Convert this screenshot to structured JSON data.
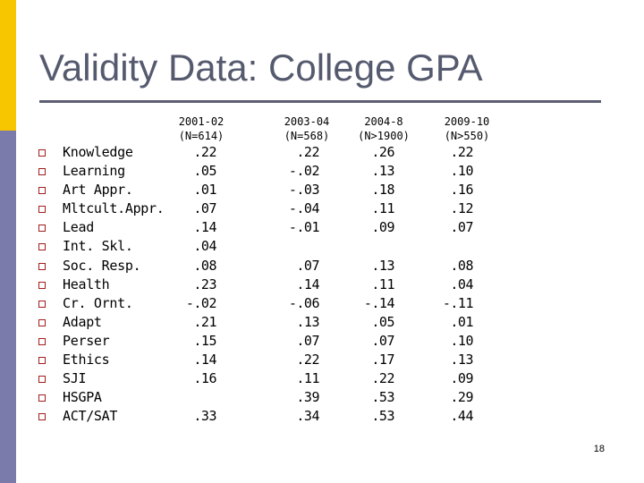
{
  "slide": {
    "title": "Validity Data: College GPA",
    "page_number": "18",
    "accent_colors": {
      "top_bar": "#f7c600",
      "bottom_bar": "#7a7aab",
      "bullet": "#a11d1d",
      "title": "#555a6e"
    }
  },
  "table": {
    "columns": [
      {
        "years": "2001-02",
        "n": "(N=614)"
      },
      {
        "years": "2003-04",
        "n": "(N=568)"
      },
      {
        "years": "2004-8",
        "n": "(N>1900)"
      },
      {
        "years": "2009-10",
        "n": "(N>550)"
      }
    ],
    "rows": [
      {
        "label": "Knowledge",
        "values": [
          ".22",
          ".22",
          ".26",
          ".22"
        ]
      },
      {
        "label": "Learning",
        "values": [
          ".05",
          "-.02",
          ".13",
          ".10"
        ]
      },
      {
        "label": "Art Appr.",
        "values": [
          ".01",
          "-.03",
          ".18",
          ".16"
        ]
      },
      {
        "label": "Mltcult.Appr.",
        "values": [
          ".07",
          "-.04",
          ".11",
          ".12"
        ]
      },
      {
        "label": "Lead",
        "values": [
          ".14",
          "-.01",
          ".09",
          ".07"
        ]
      },
      {
        "label": "Int. Skl.",
        "values": [
          ".04",
          "",
          "",
          ""
        ]
      },
      {
        "label": "Soc. Resp.",
        "values": [
          ".08",
          ".07",
          ".13",
          ".08"
        ]
      },
      {
        "label": "Health",
        "values": [
          ".23",
          ".14",
          ".11",
          ".04"
        ]
      },
      {
        "label": "Cr. Ornt.",
        "values": [
          "-.02",
          "-.06",
          "-.14",
          "-.11"
        ]
      },
      {
        "label": "Adapt",
        "values": [
          ".21",
          ".13",
          ".05",
          ".01"
        ]
      },
      {
        "label": "Perser",
        "values": [
          ".15",
          ".07",
          ".07",
          ".10"
        ]
      },
      {
        "label": "Ethics",
        "values": [
          ".14",
          ".22",
          ".17",
          ".13"
        ]
      },
      {
        "label": "SJI",
        "values": [
          ".16",
          ".11",
          ".22",
          ".09"
        ]
      },
      {
        "label": "HSGPA",
        "values": [
          "",
          ".39",
          ".53",
          ".29"
        ]
      },
      {
        "label": "ACT/SAT",
        "values": [
          ".33",
          ".34",
          ".53",
          ".44"
        ]
      }
    ]
  }
}
